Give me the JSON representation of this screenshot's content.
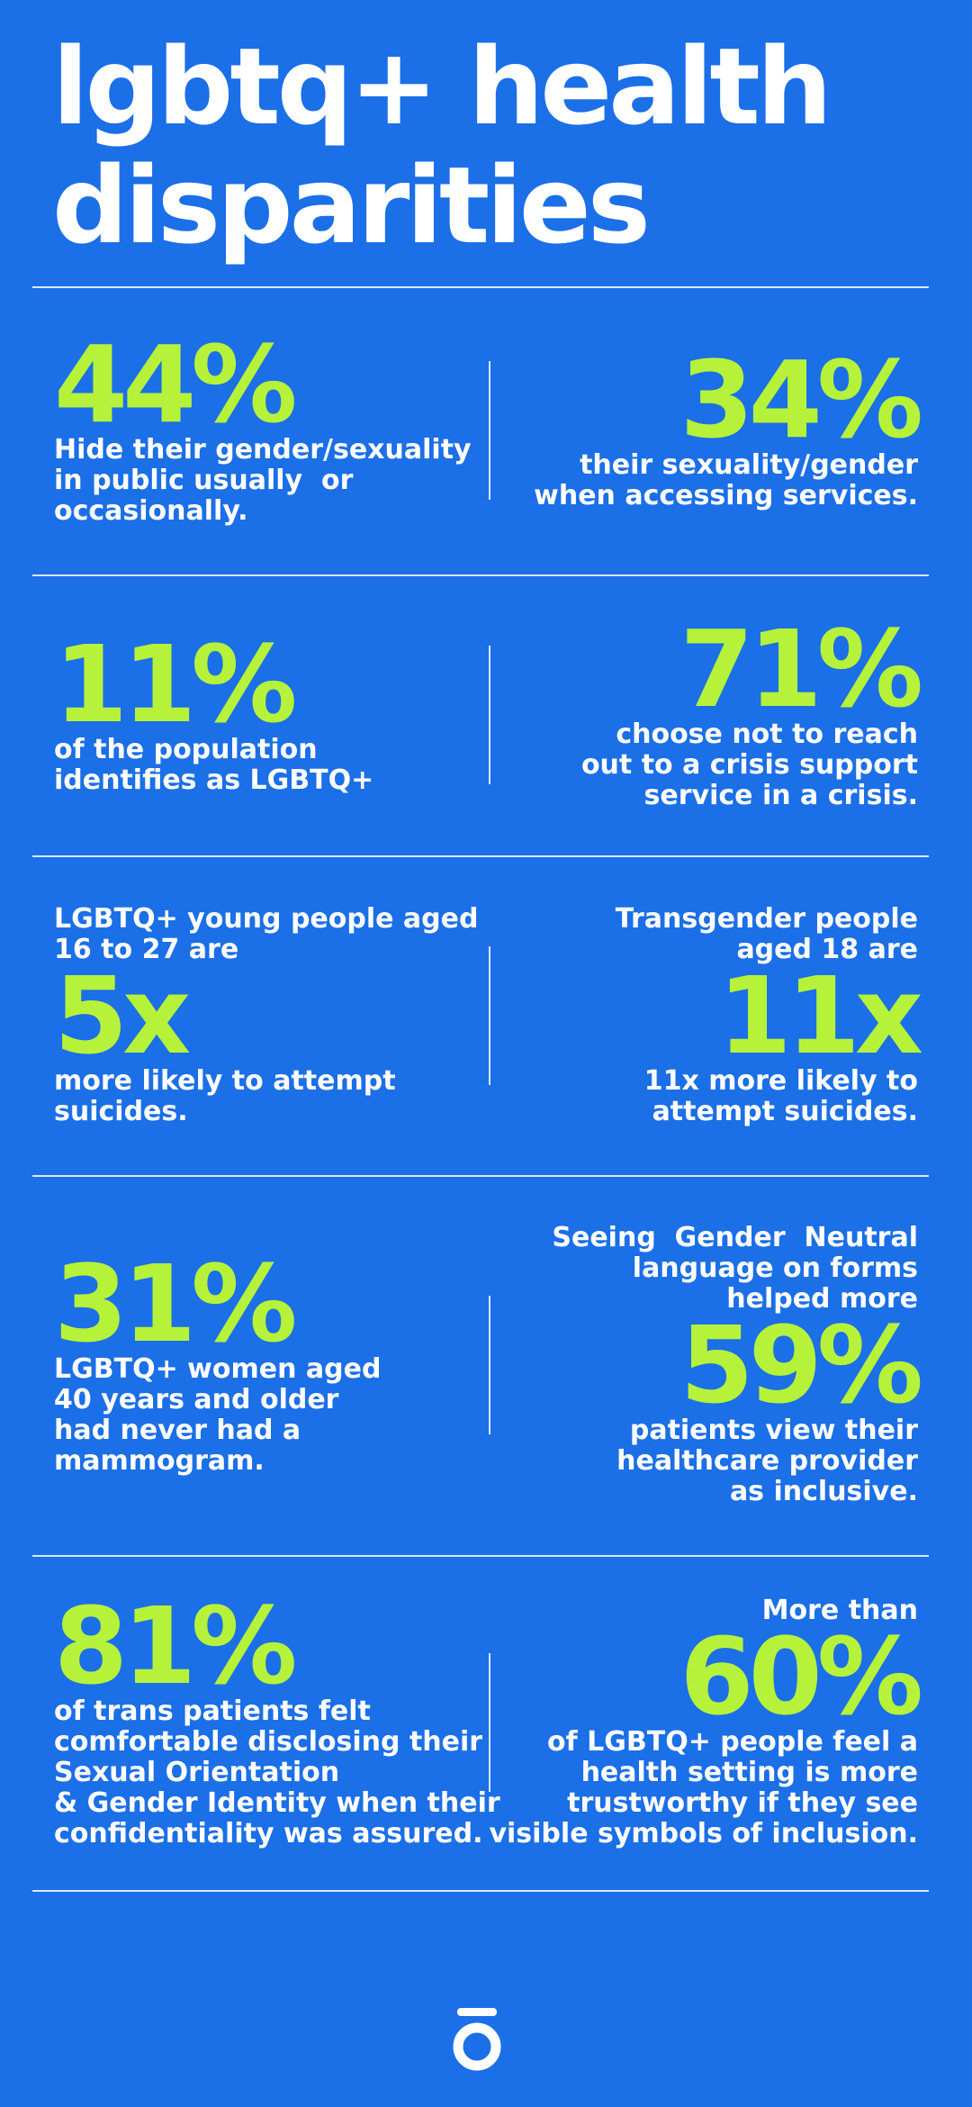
{
  "title": [
    "lgbtq+ health",
    "disparities"
  ],
  "rows": [
    {
      "left": {
        "stat": "44%",
        "text": [
          "Hide their gender/sexuality",
          "in public usually  or",
          "occasionally."
        ]
      },
      "right": {
        "stat": "34%",
        "text": [
          "their sexuality/gender",
          "when accessing services."
        ]
      }
    },
    {
      "left": {
        "stat": "11%",
        "text": [
          "of the population",
          "identifies as LGBTQ+"
        ]
      },
      "right": {
        "stat": "71%",
        "text": [
          "choose not to reach",
          "out to a crisis support",
          "service in a crisis."
        ]
      }
    },
    {
      "left": {
        "pre": [
          "LGBTQ+ young people aged",
          "16 to 27 are"
        ],
        "stat": "5x",
        "text": [
          "more likely to attempt",
          "suicides."
        ]
      },
      "right": {
        "pre": [
          "Transgender people",
          "aged 18 are"
        ],
        "stat": "11x",
        "text": [
          "11x more likely to",
          "attempt suicides."
        ]
      }
    },
    {
      "left": {
        "stat": "31%",
        "text": [
          "LGBTQ+ women aged",
          "40 years and older",
          "had never had a",
          "mammogram."
        ]
      },
      "right": {
        "pre": [
          "Seeing  Gender  Neutral",
          "language on forms",
          "helped more"
        ],
        "stat": "59%",
        "text": [
          "patients view their",
          "healthcare provider",
          "as inclusive."
        ]
      }
    },
    {
      "left": {
        "stat": "81%",
        "text": [
          "of trans patients felt",
          "comfortable disclosing their",
          "Sexual Orientation",
          "& Gender Identity when their",
          "confidentiality was assured."
        ]
      },
      "right": {
        "pre": [
          "More than"
        ],
        "stat": "60%",
        "text": [
          "of LGBTQ+ people feel a",
          "health setting is more",
          "trustworthy if they see",
          "visible symbols of inclusion."
        ]
      }
    }
  ]
}
